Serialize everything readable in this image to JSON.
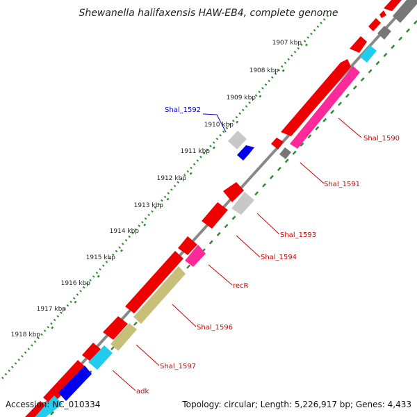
{
  "title": "Shewanella halifaxensis HAW-EB4, complete genome",
  "footer": {
    "accession": "Accession: NC_010334",
    "topology": "Topology: circular; Length: 5,226,917 bp; Genes: 4,433"
  },
  "ticks": [
    "1907 kbp",
    "1908 kbp",
    "1909 kbp",
    "1910 kbp",
    "1911 kbp",
    "1912 kbp",
    "1913 kbp",
    "1914 kbp",
    "1915 kbp",
    "1916 kbp",
    "1917 kbp",
    "1918 kbp"
  ],
  "gene_labels": [
    {
      "text": "Shal_1592",
      "color": "#0000cc"
    },
    {
      "text": "Shal_1590",
      "color": "#cc0000"
    },
    {
      "text": "Shal_1591",
      "color": "#cc0000"
    },
    {
      "text": "Shal_1593",
      "color": "#cc0000"
    },
    {
      "text": "Shal_1594",
      "color": "#cc0000"
    },
    {
      "text": "recR",
      "color": "#cc0000"
    },
    {
      "text": "Shal_1596",
      "color": "#cc0000"
    },
    {
      "text": "Shal_1597",
      "color": "#cc0000"
    },
    {
      "text": "adk",
      "color": "#cc0000"
    }
  ],
  "colors": {
    "backbone": "#888888",
    "dots": "#2e8b2e",
    "red": "#ee0000",
    "pink": "#ff2a9a",
    "cyan": "#22ccee",
    "blue": "#0000ee",
    "gray": "#c8c8c8",
    "darkgray": "#777777",
    "olive": "#c8c07a"
  }
}
